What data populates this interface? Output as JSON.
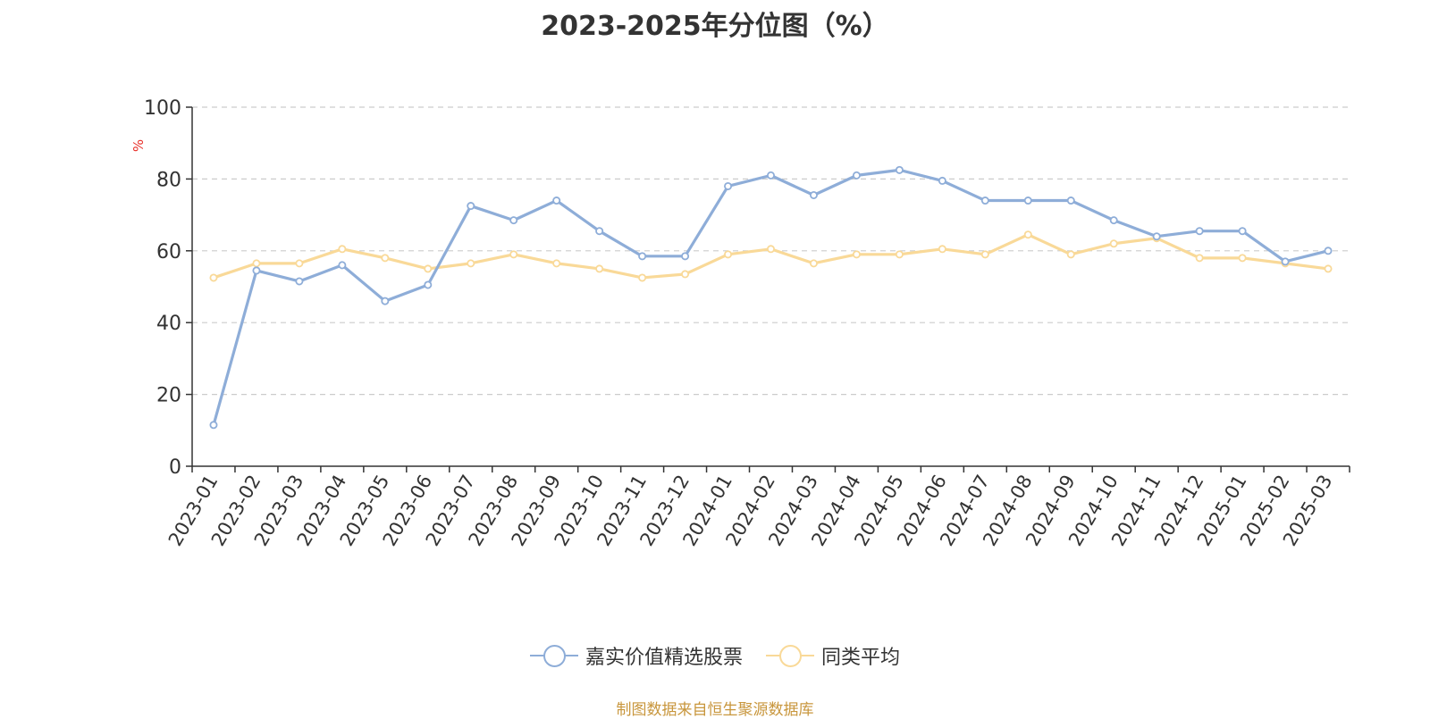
{
  "chart_data": {
    "type": "line",
    "title": "2023-2025年分位图（%）",
    "ylabel": "%",
    "ylim": [
      0,
      100
    ],
    "yticks": [
      0,
      20,
      40,
      60,
      80,
      100
    ],
    "grid": true,
    "legend_position": "bottom",
    "categories": [
      "2023-01",
      "2023-02",
      "2023-03",
      "2023-04",
      "2023-05",
      "2023-06",
      "2023-07",
      "2023-08",
      "2023-09",
      "2023-10",
      "2023-11",
      "2023-12",
      "2024-01",
      "2024-02",
      "2024-03",
      "2024-04",
      "2024-05",
      "2024-06",
      "2024-07",
      "2024-08",
      "2024-09",
      "2024-10",
      "2024-11",
      "2024-12",
      "2025-01",
      "2025-02",
      "2025-03"
    ],
    "series": [
      {
        "name": "嘉实价值精选股票",
        "color": "#8eadd8",
        "values": [
          11.5,
          54.5,
          51.5,
          56,
          46,
          50.5,
          72.5,
          68.5,
          74,
          65.5,
          58.5,
          58.5,
          78,
          81,
          75.5,
          81,
          82.5,
          79.5,
          74,
          74,
          74,
          68.5,
          64,
          65.5,
          65.5,
          57,
          60
        ]
      },
      {
        "name": "同类平均",
        "color": "#f9d998",
        "values": [
          52.5,
          56.5,
          56.5,
          60.5,
          58,
          55,
          56.5,
          59,
          56.5,
          55,
          52.5,
          53.5,
          59,
          60.5,
          56.5,
          59,
          59,
          60.5,
          59,
          64.5,
          59,
          62,
          63.5,
          58,
          58,
          56.5,
          55
        ]
      }
    ]
  },
  "source_note": "制图数据来自恒生聚源数据库"
}
